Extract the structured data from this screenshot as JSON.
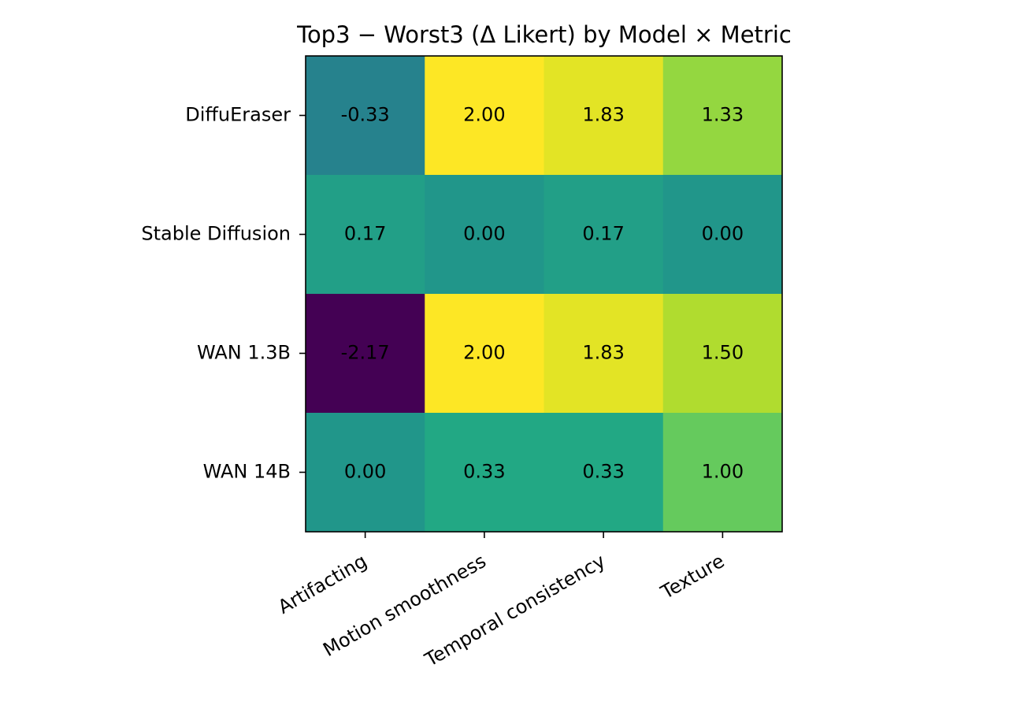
{
  "chart_data": {
    "type": "heatmap",
    "title": "Top3 − Worst3 (Δ Likert) by Model × Metric",
    "xlabel": "",
    "ylabel": "",
    "x_categories": [
      "Artifacting",
      "Motion smoothness",
      "Temporal consistency",
      "Texture"
    ],
    "y_categories": [
      "DiffuEraser",
      "Stable Diffusion",
      "WAN 1.3B",
      "WAN 14B"
    ],
    "values": [
      [
        -0.33,
        2.0,
        1.83,
        1.33
      ],
      [
        0.17,
        0.0,
        0.17,
        0.0
      ],
      [
        -2.17,
        2.0,
        1.83,
        1.5
      ],
      [
        0.0,
        0.33,
        0.33,
        1.0
      ]
    ],
    "value_labels": [
      [
        "-0.33",
        "2.00",
        "1.83",
        "1.33"
      ],
      [
        "0.17",
        "0.00",
        "0.17",
        "0.00"
      ],
      [
        "-2.17",
        "2.00",
        "1.83",
        "1.50"
      ],
      [
        "0.00",
        "0.33",
        "0.33",
        "1.00"
      ]
    ],
    "colormap": "viridis",
    "color_range": [
      -2.17,
      2.0
    ],
    "x_tick_rotation_deg": 30,
    "grid": false,
    "colorbar": false
  }
}
